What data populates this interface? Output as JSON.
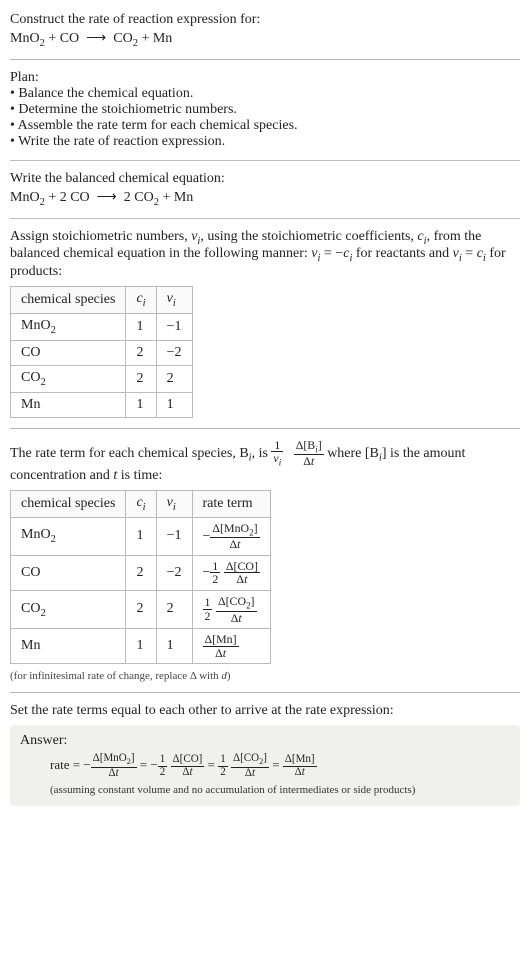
{
  "header": {
    "prompt": "Construct the rate of reaction expression for:",
    "equation_html": "MnO<sub>2</sub> + CO &nbsp;⟶&nbsp; CO<sub>2</sub> + Mn"
  },
  "plan": {
    "title": "Plan:",
    "items": [
      "Balance the chemical equation.",
      "Determine the stoichiometric numbers.",
      "Assemble the rate term for each chemical species.",
      "Write the rate of reaction expression."
    ]
  },
  "balanced": {
    "title": "Write the balanced chemical equation:",
    "equation_html": "MnO<sub>2</sub> + 2 CO &nbsp;⟶&nbsp; 2 CO<sub>2</sub> + Mn"
  },
  "stoich_intro_html": "Assign stoichiometric numbers, <span class=\"ital\">ν<sub>i</sub></span>, using the stoichiometric coefficients, <span class=\"ital\">c<sub>i</sub></span>, from the balanced chemical equation in the following manner: <span class=\"ital\">ν<sub>i</sub></span> = −<span class=\"ital\">c<sub>i</sub></span> for reactants and <span class=\"ital\">ν<sub>i</sub></span> = <span class=\"ital\">c<sub>i</sub></span> for products:",
  "table1": {
    "headers": [
      "chemical species",
      "c_i",
      "ν_i"
    ],
    "headers_html": [
      "chemical species",
      "<span class=\"ital\">c<sub>i</sub></span>",
      "<span class=\"ital\">ν<sub>i</sub></span>"
    ],
    "rows": [
      {
        "species_html": "MnO<sub>2</sub>",
        "c": "1",
        "nu": "−1"
      },
      {
        "species_html": "CO",
        "c": "2",
        "nu": "−2"
      },
      {
        "species_html": "CO<sub>2</sub>",
        "c": "2",
        "nu": "2"
      },
      {
        "species_html": "Mn",
        "c": "1",
        "nu": "1"
      }
    ]
  },
  "rate_intro": {
    "pre": "The rate term for each chemical species, B",
    "sub1": "i",
    "mid1": ", is ",
    "frac1_num_html": "1",
    "frac1_den_html": "<span class=\"ital\">ν<sub>i</sub></span>",
    "frac2_num_html": "Δ[B<sub><span class=\"ital\">i</span></sub>]",
    "frac2_den_html": "Δ<span class=\"ital\">t</span>",
    "post1": " where [B",
    "sub2": "i",
    "post2": "] is the amount concentration and ",
    "tvar": "t",
    "post3": " is time:"
  },
  "table2": {
    "headers_html": [
      "chemical species",
      "<span class=\"ital\">c<sub>i</sub></span>",
      "<span class=\"ital\">ν<sub>i</sub></span>",
      "rate term"
    ],
    "rows": [
      {
        "species_html": "MnO<sub>2</sub>",
        "c": "1",
        "nu": "−1",
        "rate_html": "−<span class=\"frac\"><span class=\"num\">Δ[MnO<sub>2</sub>]</span><span class=\"den\">Δ<span class=\"ital\">t</span></span></span>"
      },
      {
        "species_html": "CO",
        "c": "2",
        "nu": "−2",
        "rate_html": "−<span class=\"frac\"><span class=\"num\">1</span><span class=\"den\">2</span></span> <span class=\"frac\"><span class=\"num\">Δ[CO]</span><span class=\"den\">Δ<span class=\"ital\">t</span></span></span>"
      },
      {
        "species_html": "CO<sub>2</sub>",
        "c": "2",
        "nu": "2",
        "rate_html": "<span class=\"frac\"><span class=\"num\">1</span><span class=\"den\">2</span></span> <span class=\"frac\"><span class=\"num\">Δ[CO<sub>2</sub>]</span><span class=\"den\">Δ<span class=\"ital\">t</span></span></span>"
      },
      {
        "species_html": "Mn",
        "c": "1",
        "nu": "1",
        "rate_html": "<span class=\"frac\"><span class=\"num\">Δ[Mn]</span><span class=\"den\">Δ<span class=\"ital\">t</span></span></span>"
      }
    ],
    "footnote_html": "(for infinitesimal rate of change, replace Δ with <span class=\"ital\">d</span>)"
  },
  "set_equal": "Set the rate terms equal to each other to arrive at the rate expression:",
  "answer": {
    "label": "Answer:",
    "rate_html": "rate = −<span class=\"frac\"><span class=\"num\">Δ[MnO<sub>2</sub>]</span><span class=\"den\">Δ<span class=\"ital\">t</span></span></span> = −<span class=\"frac\"><span class=\"num\">1</span><span class=\"den\">2</span></span> <span class=\"frac\"><span class=\"num\">Δ[CO]</span><span class=\"den\">Δ<span class=\"ital\">t</span></span></span> = <span class=\"frac\"><span class=\"num\">1</span><span class=\"den\">2</span></span> <span class=\"frac\"><span class=\"num\">Δ[CO<sub>2</sub>]</span><span class=\"den\">Δ<span class=\"ital\">t</span></span></span> = <span class=\"frac\"><span class=\"num\">Δ[Mn]</span><span class=\"den\">Δ<span class=\"ital\">t</span></span></span>",
    "assume": "(assuming constant volume and no accumulation of intermediates or side products)"
  },
  "colors": {
    "text": "#222222",
    "rule": "#bbbbbb",
    "answer_bg": "#f0f0ec"
  }
}
